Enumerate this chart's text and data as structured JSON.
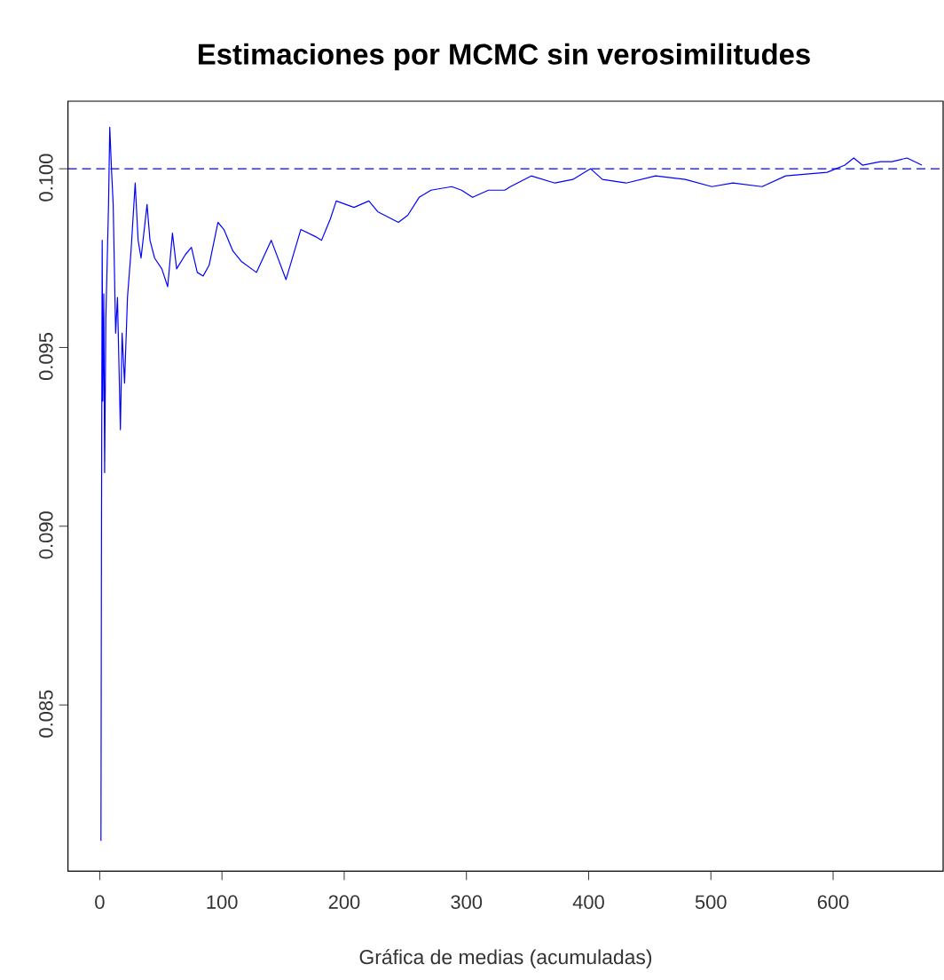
{
  "chart_data": {
    "type": "line",
    "title": "Estimaciones por MCMC sin verosimilitudes",
    "xlabel": "Gráfica de medias (acumuladas)",
    "xlim": [
      -26,
      690
    ],
    "ylim": [
      0.08035,
      0.10189
    ],
    "xticks": [
      0,
      100,
      200,
      300,
      400,
      500,
      600
    ],
    "yticks": [
      {
        "value": 0.085,
        "label": "0.085"
      },
      {
        "value": 0.09,
        "label": "0.090"
      },
      {
        "value": 0.095,
        "label": "0.095"
      },
      {
        "value": 0.1,
        "label": "0.100"
      }
    ],
    "grid": false,
    "marker": "none",
    "line_style": "solid",
    "ref_lines": [
      {
        "axis": "y",
        "value": 0.1,
        "color": "#0000ff",
        "line_style": "dashed"
      }
    ],
    "series": [
      {
        "color": "#0000ff",
        "x": [
          1,
          1.4,
          2,
          2.5,
          3.3,
          4,
          5,
          7.2,
          8.2,
          9.6,
          11,
          13,
          14.5,
          16.9,
          18.3,
          20.3,
          22.7,
          25.6,
          29,
          31.4,
          33.8,
          38.7,
          41.1,
          44.9,
          50.8,
          55.6,
          59.5,
          62.9,
          70.1,
          75,
          79.8,
          84.6,
          89.5,
          96.7,
          101.6,
          108.9,
          116.1,
          128.2,
          140.3,
          152.4,
          164.5,
          176.6,
          181.5,
          188.7,
          193.5,
          208,
          220.2,
          227.4,
          244.3,
          252,
          261.3,
          271,
          288,
          296,
          305,
          318,
          331.4,
          336,
          353,
          372.4,
          387,
          401.6,
          411.3,
          430.6,
          454.8,
          479,
          500.8,
          518,
          541.9,
          561.2,
          595.1,
          609.6,
          616.9,
          624,
          638.7,
          648,
          660.5,
          672.6
        ],
        "values": [
          0.0812,
          0.0895,
          0.098,
          0.0935,
          0.0965,
          0.0915,
          0.0958,
          0.099,
          0.10116,
          0.1,
          0.099,
          0.0954,
          0.0964,
          0.0927,
          0.0954,
          0.094,
          0.0964,
          0.0977,
          0.0996,
          0.098,
          0.0975,
          0.099,
          0.098,
          0.0975,
          0.0972,
          0.0967,
          0.0982,
          0.0972,
          0.0976,
          0.0978,
          0.0971,
          0.097,
          0.0973,
          0.0985,
          0.0983,
          0.0977,
          0.0974,
          0.0971,
          0.098,
          0.0969,
          0.0983,
          0.0981,
          0.098,
          0.0986,
          0.0991,
          0.09892,
          0.0991,
          0.0988,
          0.0985,
          0.0987,
          0.0992,
          0.0994,
          0.0995,
          0.0994,
          0.0992,
          0.0994,
          0.0994,
          0.0995,
          0.0998,
          0.0996,
          0.0997,
          0.1,
          0.0997,
          0.0996,
          0.0998,
          0.0997,
          0.0995,
          0.0996,
          0.0995,
          0.0998,
          0.0999,
          0.1001,
          0.1003,
          0.1001,
          0.1002,
          0.1002,
          0.1003,
          0.1001
        ]
      }
    ]
  }
}
